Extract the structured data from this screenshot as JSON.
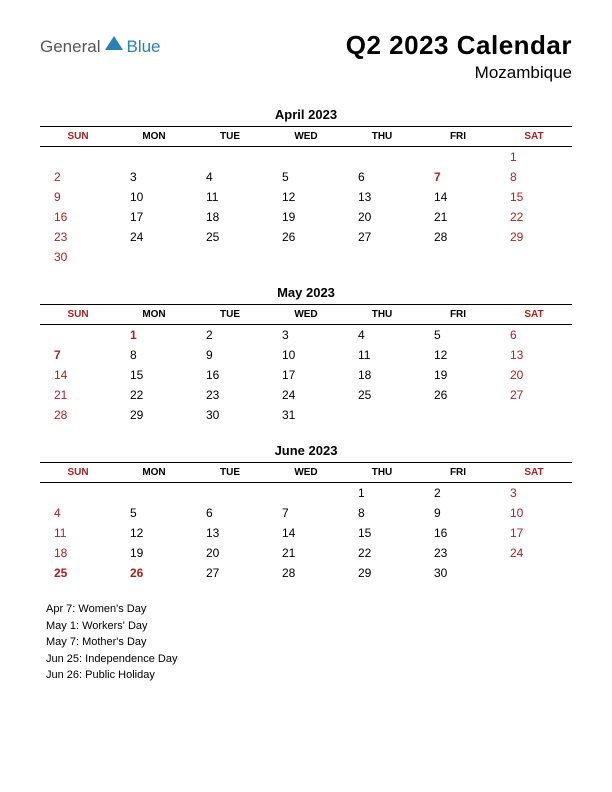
{
  "logo": {
    "text1": "General",
    "text2": "Blue",
    "color_gray": "#555555",
    "color_blue": "#2b7fb8",
    "triangle_color": "#2b7fb8"
  },
  "header": {
    "title": "Q2 2023 Calendar",
    "subtitle": "Mozambique"
  },
  "day_headers": [
    "SUN",
    "MON",
    "TUE",
    "WED",
    "THU",
    "FRI",
    "SAT"
  ],
  "header_red_cols": [
    0,
    6
  ],
  "months": [
    {
      "title": "April 2023",
      "weeks": [
        [
          null,
          null,
          null,
          null,
          null,
          null,
          {
            "d": 1,
            "red": true
          }
        ],
        [
          {
            "d": 2,
            "red": true
          },
          {
            "d": 3
          },
          {
            "d": 4
          },
          {
            "d": 5
          },
          {
            "d": 6
          },
          {
            "d": 7,
            "red": true,
            "bold": true
          },
          {
            "d": 8,
            "red": true
          }
        ],
        [
          {
            "d": 9,
            "red": true
          },
          {
            "d": 10
          },
          {
            "d": 11
          },
          {
            "d": 12
          },
          {
            "d": 13
          },
          {
            "d": 14
          },
          {
            "d": 15,
            "red": true
          }
        ],
        [
          {
            "d": 16,
            "red": true
          },
          {
            "d": 17
          },
          {
            "d": 18
          },
          {
            "d": 19
          },
          {
            "d": 20
          },
          {
            "d": 21
          },
          {
            "d": 22,
            "red": true
          }
        ],
        [
          {
            "d": 23,
            "red": true
          },
          {
            "d": 24
          },
          {
            "d": 25
          },
          {
            "d": 26
          },
          {
            "d": 27
          },
          {
            "d": 28
          },
          {
            "d": 29,
            "red": true
          }
        ],
        [
          {
            "d": 30,
            "red": true
          },
          null,
          null,
          null,
          null,
          null,
          null
        ]
      ]
    },
    {
      "title": "May 2023",
      "weeks": [
        [
          null,
          {
            "d": 1,
            "red": true,
            "bold": true
          },
          {
            "d": 2
          },
          {
            "d": 3
          },
          {
            "d": 4
          },
          {
            "d": 5
          },
          {
            "d": 6,
            "red": true
          }
        ],
        [
          {
            "d": 7,
            "red": true,
            "bold": true
          },
          {
            "d": 8
          },
          {
            "d": 9
          },
          {
            "d": 10
          },
          {
            "d": 11
          },
          {
            "d": 12
          },
          {
            "d": 13,
            "red": true
          }
        ],
        [
          {
            "d": 14,
            "red": true
          },
          {
            "d": 15
          },
          {
            "d": 16
          },
          {
            "d": 17
          },
          {
            "d": 18
          },
          {
            "d": 19
          },
          {
            "d": 20,
            "red": true
          }
        ],
        [
          {
            "d": 21,
            "red": true
          },
          {
            "d": 22
          },
          {
            "d": 23
          },
          {
            "d": 24
          },
          {
            "d": 25
          },
          {
            "d": 26
          },
          {
            "d": 27,
            "red": true
          }
        ],
        [
          {
            "d": 28,
            "red": true
          },
          {
            "d": 29
          },
          {
            "d": 30
          },
          {
            "d": 31
          },
          null,
          null,
          null
        ]
      ]
    },
    {
      "title": "June 2023",
      "weeks": [
        [
          null,
          null,
          null,
          null,
          {
            "d": 1
          },
          {
            "d": 2
          },
          {
            "d": 3,
            "red": true
          }
        ],
        [
          {
            "d": 4,
            "red": true
          },
          {
            "d": 5
          },
          {
            "d": 6
          },
          {
            "d": 7
          },
          {
            "d": 8
          },
          {
            "d": 9
          },
          {
            "d": 10,
            "red": true
          }
        ],
        [
          {
            "d": 11,
            "red": true
          },
          {
            "d": 12
          },
          {
            "d": 13
          },
          {
            "d": 14
          },
          {
            "d": 15
          },
          {
            "d": 16
          },
          {
            "d": 17,
            "red": true
          }
        ],
        [
          {
            "d": 18,
            "red": true
          },
          {
            "d": 19
          },
          {
            "d": 20
          },
          {
            "d": 21
          },
          {
            "d": 22
          },
          {
            "d": 23
          },
          {
            "d": 24,
            "red": true
          }
        ],
        [
          {
            "d": 25,
            "red": true,
            "bold": true
          },
          {
            "d": 26,
            "red": true,
            "bold": true
          },
          {
            "d": 27
          },
          {
            "d": 28
          },
          {
            "d": 29
          },
          {
            "d": 30
          },
          null
        ]
      ]
    }
  ],
  "holidays": [
    "Apr 7: Women's Day",
    "May 1: Workers' Day",
    "May 7: Mother's Day",
    "Jun 25: Independence Day",
    "Jun 26: Public Holiday"
  ],
  "colors": {
    "red": "#b02020",
    "black": "#000000",
    "bg": "#ffffff"
  }
}
